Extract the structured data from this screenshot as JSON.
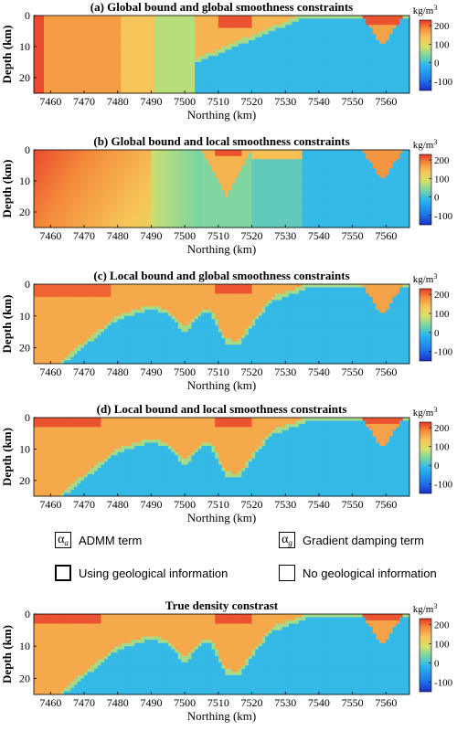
{
  "panels": [
    {
      "title": "(a) Global bound and global smoothness constraints",
      "mode": "global"
    },
    {
      "title": "(b) Global bound and local smoothness constraints",
      "mode": "globalSmooth"
    },
    {
      "title": "(c) Local bound and global smoothness constraints",
      "mode": "localSmooth"
    },
    {
      "title": "(d) Local bound and local smoothness constraints",
      "mode": "local"
    },
    {
      "title": "True density constrast",
      "mode": "true"
    }
  ],
  "axes": {
    "ylabel": "Depth (km)",
    "xlabel": "Northing (km)",
    "xticks": [
      "7460",
      "7470",
      "7480",
      "7490",
      "7500",
      "7510",
      "7520",
      "7530",
      "7540",
      "7550",
      "7560"
    ],
    "yticks": [
      "0",
      "10",
      "20"
    ],
    "xlim": [
      7455,
      7567
    ],
    "ylim": [
      0,
      25
    ]
  },
  "colorbar": {
    "unit": "kg/m",
    "unit_sup": "3",
    "ticks": [
      "200",
      "100",
      "0",
      "-100"
    ],
    "range": [
      -150,
      230
    ],
    "colormap": "jet"
  },
  "legend": {
    "admm_symbol": "α",
    "admm_sub": "a",
    "admm_label": "ADMM term",
    "grad_symbol": "α",
    "grad_sub": "g",
    "grad_label": "Gradient damping term",
    "geo_label": "Using geological information",
    "nogeo_label": "No geological information"
  }
}
